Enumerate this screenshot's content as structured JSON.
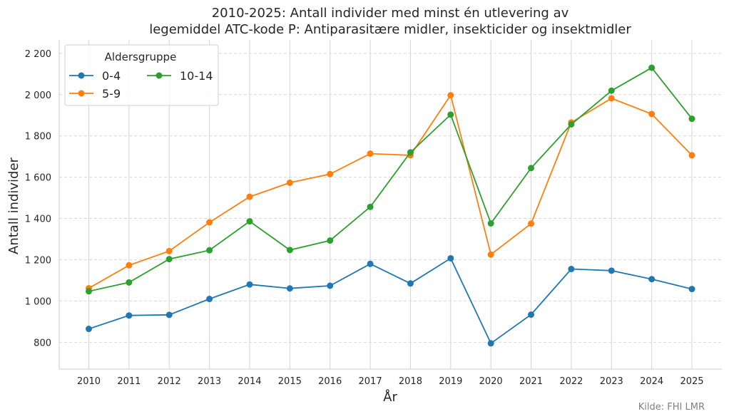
{
  "chart_data": {
    "type": "line",
    "title_line1": "2010-2025: Antall individer med minst én utlevering av",
    "title_line2": "legemiddel ATC-kode P: Antiparasitære midler, insekticider og insektmidler",
    "xlabel": "År",
    "ylabel": "Antall individer",
    "x": [
      2010,
      2011,
      2012,
      2013,
      2014,
      2015,
      2016,
      2017,
      2018,
      2019,
      2020,
      2021,
      2022,
      2023,
      2024,
      2025
    ],
    "x_tick_labels": [
      "2010",
      "2011",
      "2012",
      "2013",
      "2014",
      "2015",
      "2016",
      "2017",
      "2018",
      "2019",
      "2020",
      "2021",
      "2022",
      "2023",
      "2024",
      "2025"
    ],
    "ylim": [
      670,
      2265
    ],
    "y_ticks": [
      800,
      1000,
      1200,
      1400,
      1600,
      1800,
      2000,
      2200
    ],
    "y_tick_labels": [
      "800",
      "1 000",
      "1 200",
      "1 400",
      "1 600",
      "1 800",
      "2 000",
      "2 200"
    ],
    "grid": {
      "x": "solid",
      "y": "dashed"
    },
    "legend": {
      "title": "Aldersgruppe",
      "placement": "top-left",
      "columns": 2
    },
    "series": [
      {
        "name": "0-4",
        "color": "#1f77b4",
        "values": [
          865,
          930,
          933,
          1010,
          1080,
          1061,
          1074,
          1180,
          1085,
          1207,
          795,
          934,
          1155,
          1147,
          1106,
          1058
        ]
      },
      {
        "name": "5-9",
        "color": "#ff7f0e",
        "values": [
          1062,
          1173,
          1242,
          1381,
          1505,
          1573,
          1615,
          1714,
          1706,
          1997,
          1225,
          1375,
          1865,
          1982,
          1906,
          1706
        ]
      },
      {
        "name": "10-14",
        "color": "#2ca02c",
        "values": [
          1047,
          1090,
          1203,
          1246,
          1386,
          1247,
          1293,
          1456,
          1720,
          1903,
          1376,
          1644,
          1856,
          2019,
          2130,
          1883
        ]
      }
    ],
    "source": "Kilde: FHI LMR"
  }
}
